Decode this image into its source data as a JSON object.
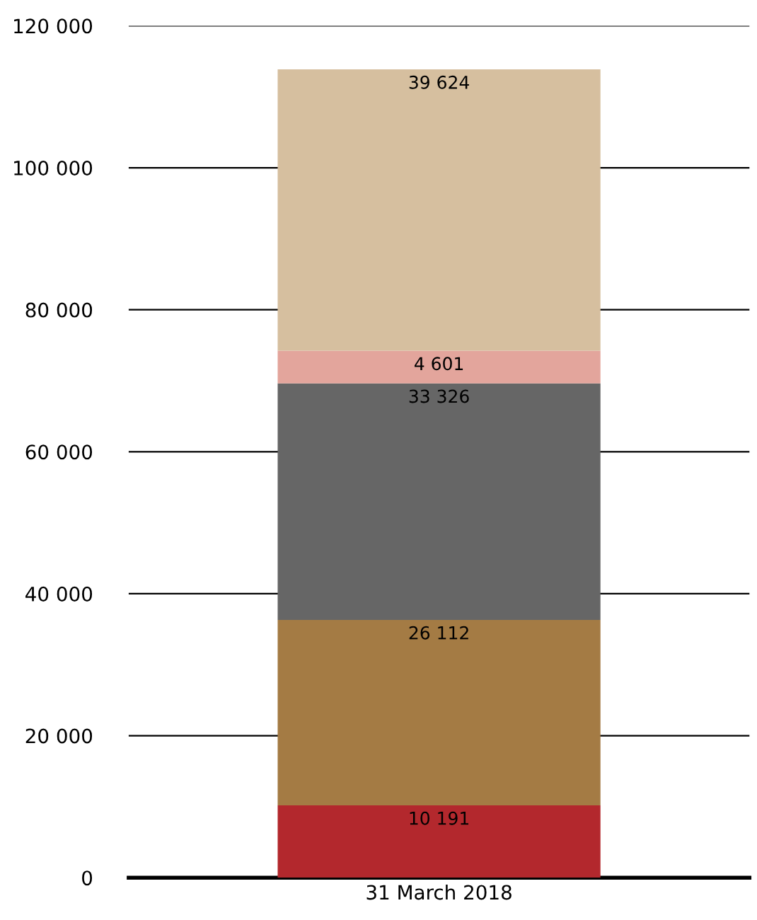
{
  "chart_data": {
    "type": "bar",
    "stacked": true,
    "categories": [
      "31 March 2018"
    ],
    "series": [
      {
        "color": "#b3282d",
        "values": [
          10191
        ],
        "value_labels": [
          "10 191"
        ]
      },
      {
        "color": "#a47b44",
        "values": [
          26112
        ],
        "value_labels": [
          "26 112"
        ]
      },
      {
        "color": "#666666",
        "values": [
          33326
        ],
        "value_labels": [
          "33 326"
        ]
      },
      {
        "color": "#e3a59c",
        "values": [
          4601
        ],
        "value_labels": [
          "4 601"
        ]
      },
      {
        "color": "#d6bf9f",
        "values": [
          39624
        ],
        "value_labels": [
          "39 624"
        ]
      }
    ],
    "ylim": [
      0,
      120000
    ],
    "yticks": [
      {
        "value": 0,
        "label": "0"
      },
      {
        "value": 20000,
        "label": "20 000"
      },
      {
        "value": 40000,
        "label": "40 000"
      },
      {
        "value": 60000,
        "label": "60 000"
      },
      {
        "value": 80000,
        "label": "80 000"
      },
      {
        "value": 100000,
        "label": "100 000"
      },
      {
        "value": 120000,
        "label": "120 000"
      }
    ],
    "grid": "y"
  }
}
